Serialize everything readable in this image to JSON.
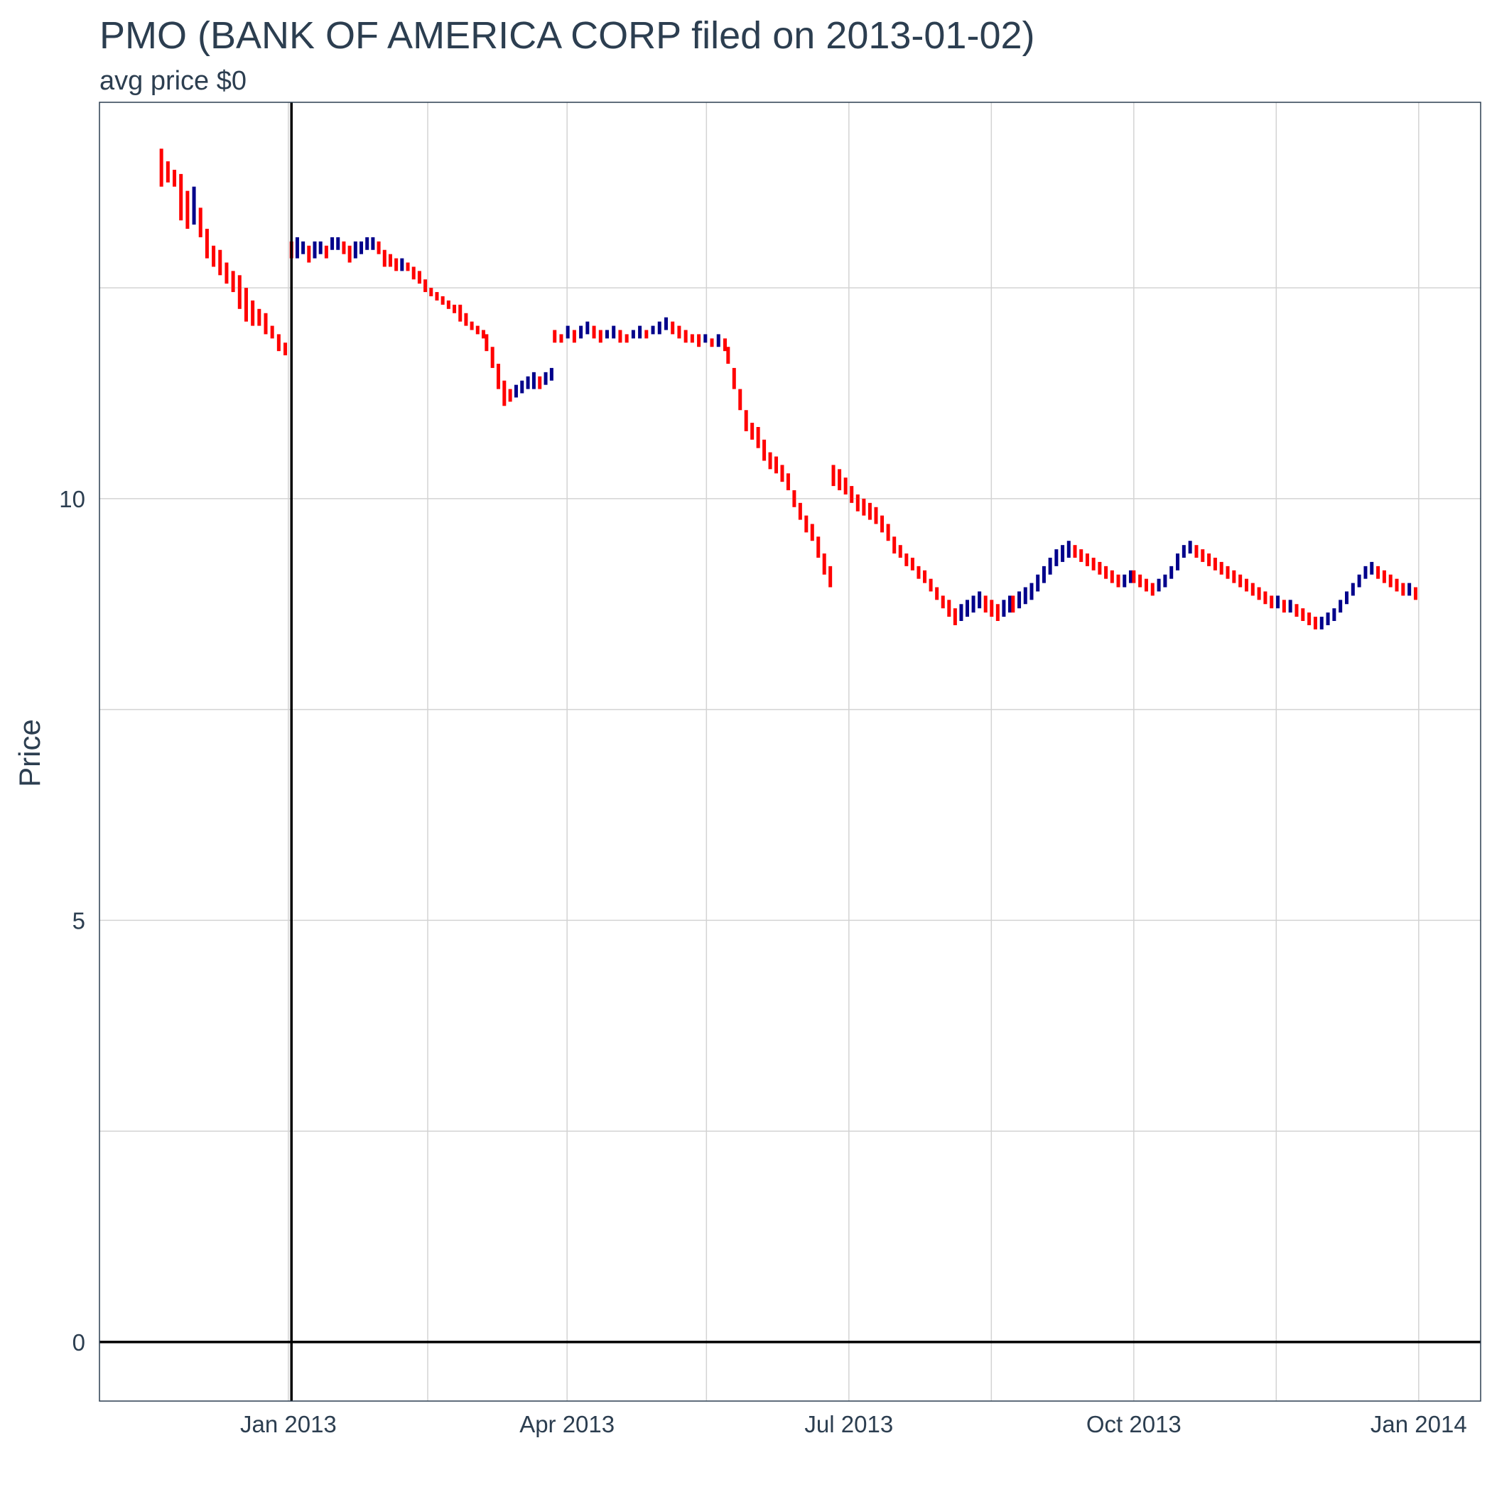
{
  "chart_data": {
    "type": "ohlc",
    "title": "PMO (BANK OF AMERICA CORP filed on 2013-01-02)",
    "subtitle": "avg price $0",
    "xlabel": "",
    "ylabel": "Price",
    "xlim": [
      "2012-11-01",
      "2014-01-21"
    ],
    "ylim": [
      -0.7,
      14.7
    ],
    "x_ticks": [
      {
        "date": "2013-01-01",
        "label": "Jan 2013"
      },
      {
        "date": "2013-04-01",
        "label": "Apr 2013"
      },
      {
        "date": "2013-07-01",
        "label": "Jul 2013"
      },
      {
        "date": "2013-10-01",
        "label": "Oct 2013"
      },
      {
        "date": "2014-01-01",
        "label": "Jan 2014"
      }
    ],
    "x_minor_ticks": [
      "2013-02-15",
      "2013-05-16",
      "2013-08-16",
      "2013-11-16"
    ],
    "y_ticks": [
      0,
      5,
      10
    ],
    "y_minor_ticks": [
      2.5,
      7.5,
      12.5
    ],
    "grid": true,
    "reference_lines": {
      "vline_date": "2013-01-02",
      "hline_value": 0
    },
    "colors": {
      "up": "#00008B",
      "down": "#FF0000",
      "reference": "#000000",
      "text": "#2c3e50",
      "grid": "#d3d3d3",
      "frame": "#2c3e50"
    },
    "series": [
      {
        "start": "2012-11-21",
        "end": "2012-12-31",
        "points": [
          [
            14.15,
            13.7
          ],
          [
            14.0,
            13.75
          ],
          [
            13.9,
            13.7
          ],
          [
            13.85,
            13.3
          ],
          [
            13.65,
            13.2
          ],
          [
            13.7,
            13.25
          ],
          [
            13.45,
            13.1
          ],
          [
            13.2,
            12.85
          ],
          [
            13.0,
            12.75
          ],
          [
            12.95,
            12.65
          ],
          [
            12.8,
            12.55
          ],
          [
            12.7,
            12.45
          ],
          [
            12.65,
            12.25
          ],
          [
            12.5,
            12.1
          ],
          [
            12.35,
            12.05
          ],
          [
            12.25,
            12.05
          ],
          [
            12.2,
            11.95
          ],
          [
            12.05,
            11.9
          ],
          [
            11.95,
            11.75
          ],
          [
            11.85,
            11.7
          ]
        ]
      },
      {
        "start": "2013-01-02",
        "end": "2013-03-05",
        "points": [
          [
            13.05,
            12.85
          ],
          [
            13.1,
            12.85
          ],
          [
            13.05,
            12.9
          ],
          [
            13.0,
            12.8
          ],
          [
            13.05,
            12.85
          ],
          [
            13.05,
            12.9
          ],
          [
            13.0,
            12.85
          ],
          [
            13.1,
            12.95
          ],
          [
            13.1,
            12.95
          ],
          [
            13.05,
            12.9
          ],
          [
            13.0,
            12.8
          ],
          [
            13.05,
            12.85
          ],
          [
            13.05,
            12.9
          ],
          [
            13.1,
            12.95
          ],
          [
            13.1,
            12.95
          ],
          [
            13.05,
            12.9
          ],
          [
            12.95,
            12.75
          ],
          [
            12.9,
            12.75
          ],
          [
            12.85,
            12.7
          ],
          [
            12.85,
            12.7
          ],
          [
            12.8,
            12.7
          ],
          [
            12.75,
            12.6
          ],
          [
            12.7,
            12.55
          ],
          [
            12.6,
            12.45
          ],
          [
            12.5,
            12.4
          ],
          [
            12.45,
            12.35
          ],
          [
            12.4,
            12.3
          ],
          [
            12.35,
            12.25
          ],
          [
            12.3,
            12.2
          ],
          [
            12.3,
            12.1
          ],
          [
            12.2,
            12.05
          ],
          [
            12.1,
            12.0
          ],
          [
            12.05,
            11.95
          ],
          [
            12.0,
            11.9
          ]
        ]
      },
      {
        "start": "2013-03-06",
        "end": "2013-03-27",
        "points": [
          [
            11.95,
            11.75
          ],
          [
            11.8,
            11.55
          ],
          [
            11.6,
            11.3
          ],
          [
            11.4,
            11.1
          ],
          [
            11.3,
            11.15
          ],
          [
            11.35,
            11.2
          ],
          [
            11.4,
            11.25
          ],
          [
            11.45,
            11.3
          ],
          [
            11.5,
            11.3
          ],
          [
            11.45,
            11.3
          ],
          [
            11.5,
            11.35
          ],
          [
            11.55,
            11.4
          ]
        ]
      },
      {
        "start": "2013-03-28",
        "end": "2013-05-22",
        "points": [
          [
            12.0,
            11.85
          ],
          [
            11.95,
            11.85
          ],
          [
            12.05,
            11.9
          ],
          [
            12.0,
            11.85
          ],
          [
            12.05,
            11.9
          ],
          [
            12.1,
            11.95
          ],
          [
            12.05,
            11.9
          ],
          [
            12.0,
            11.85
          ],
          [
            12.0,
            11.9
          ],
          [
            12.05,
            11.9
          ],
          [
            12.0,
            11.85
          ],
          [
            11.95,
            11.85
          ],
          [
            12.0,
            11.9
          ],
          [
            12.05,
            11.9
          ],
          [
            12.0,
            11.9
          ],
          [
            12.05,
            11.95
          ],
          [
            12.1,
            11.95
          ],
          [
            12.15,
            12.0
          ],
          [
            12.1,
            11.95
          ],
          [
            12.05,
            11.9
          ],
          [
            12.0,
            11.85
          ],
          [
            11.95,
            11.85
          ],
          [
            11.95,
            11.8
          ],
          [
            11.95,
            11.85
          ],
          [
            11.9,
            11.8
          ],
          [
            11.95,
            11.8
          ],
          [
            11.9,
            11.75
          ]
        ]
      },
      {
        "start": "2013-05-23",
        "end": "2013-06-25",
        "points": [
          [
            11.8,
            11.6
          ],
          [
            11.55,
            11.3
          ],
          [
            11.3,
            11.05
          ],
          [
            11.05,
            10.8
          ],
          [
            10.9,
            10.7
          ],
          [
            10.85,
            10.6
          ],
          [
            10.7,
            10.45
          ],
          [
            10.55,
            10.35
          ],
          [
            10.5,
            10.3
          ],
          [
            10.4,
            10.2
          ],
          [
            10.3,
            10.1
          ],
          [
            10.1,
            9.9
          ],
          [
            9.95,
            9.75
          ],
          [
            9.8,
            9.6
          ],
          [
            9.7,
            9.5
          ],
          [
            9.55,
            9.3
          ],
          [
            9.35,
            9.1
          ],
          [
            9.2,
            8.95
          ]
        ]
      },
      {
        "start": "2013-06-26",
        "end": "2013-08-22",
        "points": [
          [
            10.4,
            10.15
          ],
          [
            10.35,
            10.1
          ],
          [
            10.25,
            10.05
          ],
          [
            10.15,
            9.95
          ],
          [
            10.05,
            9.85
          ],
          [
            10.0,
            9.8
          ],
          [
            9.95,
            9.75
          ],
          [
            9.9,
            9.7
          ],
          [
            9.8,
            9.6
          ],
          [
            9.7,
            9.5
          ],
          [
            9.55,
            9.35
          ],
          [
            9.45,
            9.3
          ],
          [
            9.35,
            9.2
          ],
          [
            9.3,
            9.15
          ],
          [
            9.2,
            9.05
          ],
          [
            9.15,
            9.0
          ],
          [
            9.05,
            8.9
          ],
          [
            8.95,
            8.8
          ],
          [
            8.85,
            8.7
          ],
          [
            8.8,
            8.6
          ],
          [
            8.7,
            8.5
          ],
          [
            8.75,
            8.55
          ],
          [
            8.8,
            8.6
          ],
          [
            8.85,
            8.65
          ],
          [
            8.9,
            8.7
          ],
          [
            8.85,
            8.65
          ],
          [
            8.8,
            8.6
          ],
          [
            8.75,
            8.55
          ],
          [
            8.8,
            8.6
          ],
          [
            8.85,
            8.65
          ]
        ]
      },
      {
        "start": "2013-08-23",
        "end": "2013-09-30",
        "points": [
          [
            8.85,
            8.65
          ],
          [
            8.9,
            8.7
          ],
          [
            8.95,
            8.75
          ],
          [
            9.0,
            8.8
          ],
          [
            9.1,
            8.9
          ],
          [
            9.2,
            9.0
          ],
          [
            9.3,
            9.1
          ],
          [
            9.4,
            9.2
          ],
          [
            9.45,
            9.25
          ],
          [
            9.5,
            9.3
          ],
          [
            9.45,
            9.3
          ],
          [
            9.4,
            9.25
          ],
          [
            9.35,
            9.2
          ],
          [
            9.3,
            9.15
          ],
          [
            9.25,
            9.1
          ],
          [
            9.2,
            9.05
          ],
          [
            9.15,
            9.0
          ],
          [
            9.1,
            8.95
          ],
          [
            9.1,
            8.95
          ],
          [
            9.15,
            9.0
          ]
        ]
      },
      {
        "start": "2013-10-01",
        "end": "2013-12-31",
        "points": [
          [
            9.15,
            9.0
          ],
          [
            9.1,
            8.95
          ],
          [
            9.05,
            8.9
          ],
          [
            9.0,
            8.85
          ],
          [
            9.05,
            8.9
          ],
          [
            9.1,
            8.95
          ],
          [
            9.2,
            9.05
          ],
          [
            9.35,
            9.15
          ],
          [
            9.45,
            9.3
          ],
          [
            9.5,
            9.35
          ],
          [
            9.45,
            9.3
          ],
          [
            9.4,
            9.25
          ],
          [
            9.35,
            9.2
          ],
          [
            9.3,
            9.15
          ],
          [
            9.25,
            9.1
          ],
          [
            9.2,
            9.05
          ],
          [
            9.15,
            9.0
          ],
          [
            9.1,
            8.95
          ],
          [
            9.05,
            8.9
          ],
          [
            9.0,
            8.85
          ],
          [
            8.95,
            8.8
          ],
          [
            8.9,
            8.75
          ],
          [
            8.85,
            8.7
          ],
          [
            8.85,
            8.7
          ],
          [
            8.8,
            8.65
          ],
          [
            8.8,
            8.65
          ],
          [
            8.75,
            8.6
          ],
          [
            8.7,
            8.55
          ],
          [
            8.65,
            8.5
          ],
          [
            8.6,
            8.45
          ],
          [
            8.6,
            8.45
          ],
          [
            8.65,
            8.5
          ],
          [
            8.7,
            8.55
          ],
          [
            8.8,
            8.65
          ],
          [
            8.9,
            8.75
          ],
          [
            9.0,
            8.85
          ],
          [
            9.1,
            8.95
          ],
          [
            9.2,
            9.05
          ],
          [
            9.25,
            9.1
          ],
          [
            9.2,
            9.05
          ],
          [
            9.15,
            9.0
          ],
          [
            9.1,
            8.95
          ],
          [
            9.05,
            8.9
          ],
          [
            9.0,
            8.85
          ],
          [
            9.0,
            8.85
          ],
          [
            8.95,
            8.8
          ]
        ]
      }
    ]
  }
}
